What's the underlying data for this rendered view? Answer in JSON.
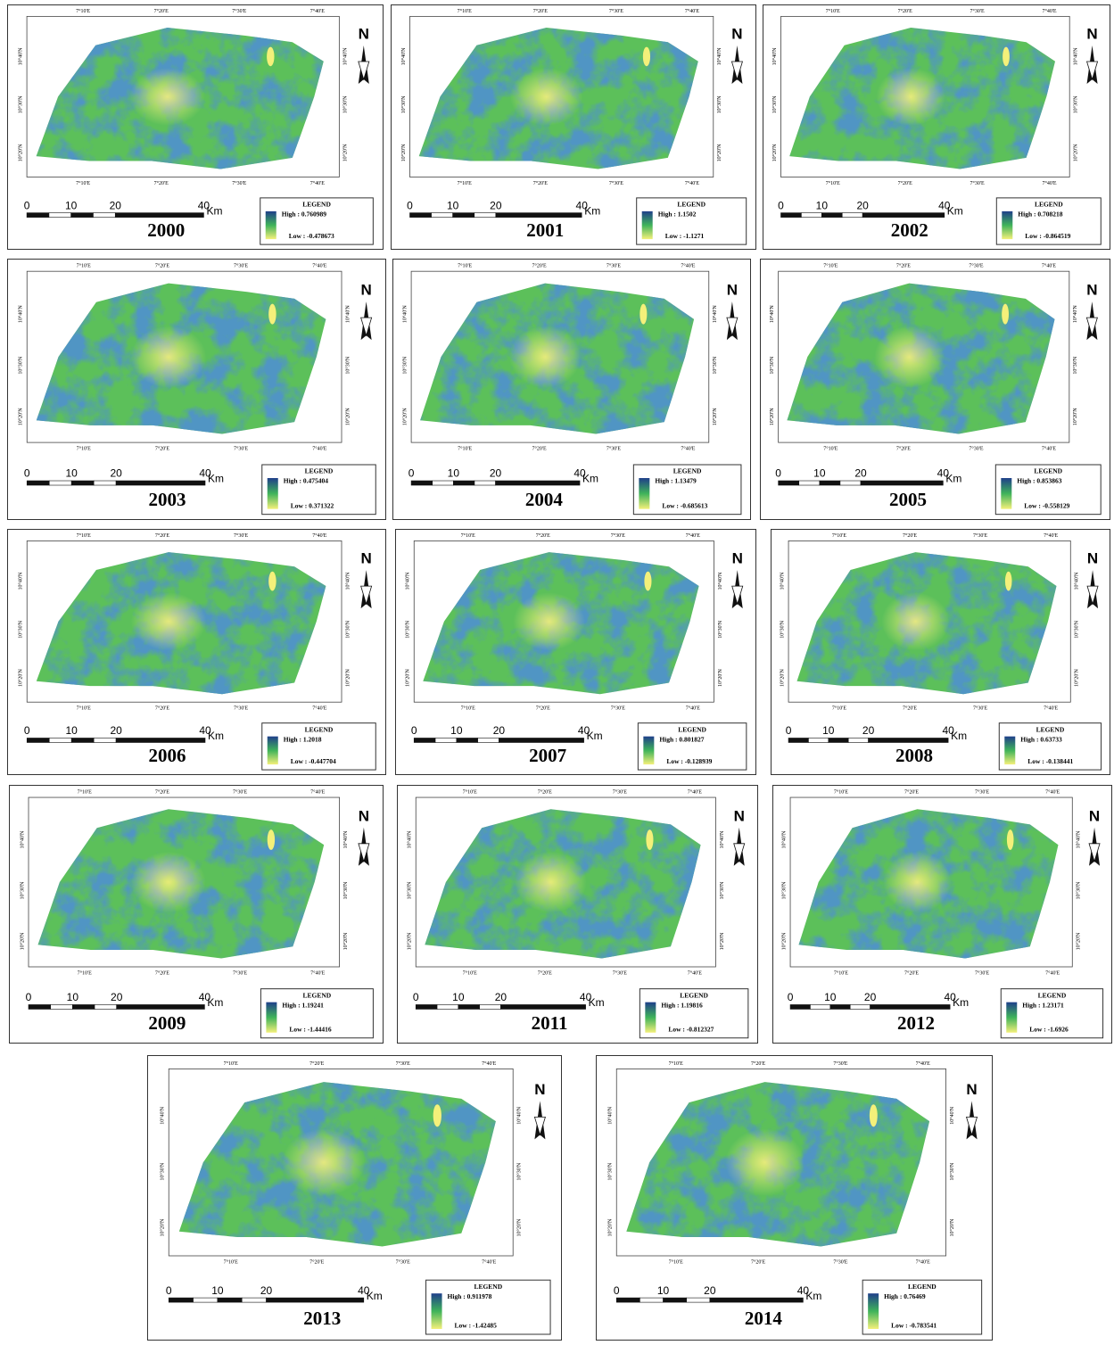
{
  "north": "N",
  "lon_labels": [
    "7°10'E",
    "7°20'E",
    "7°30'E",
    "7°40'E"
  ],
  "lat_labels": [
    "10°40'N",
    "10°30'N",
    "10°20'N"
  ],
  "scale": {
    "ticks": [
      "0",
      "10",
      "20",
      "40"
    ],
    "unit": "Km"
  },
  "legend_title": "LEGEND",
  "panels": [
    {
      "year": "2000",
      "high": "High : 0.760989",
      "low": "Low : -0.478673"
    },
    {
      "year": "2001",
      "high": "High : 1.1502",
      "low": "Low : -1.1271"
    },
    {
      "year": "2002",
      "high": "High : 0.708218",
      "low": "Low : -0.864519"
    },
    {
      "year": "2003",
      "high": "High : 0.475404",
      "low": "Low : 0.371322"
    },
    {
      "year": "2004",
      "high": "High : 1.13479",
      "low": "Low : -0.685613"
    },
    {
      "year": "2005",
      "high": "High : 0.853863",
      "low": "Low : -0.558129"
    },
    {
      "year": "2006",
      "high": "High : 1.2018",
      "low": "Low : -0.447704"
    },
    {
      "year": "2007",
      "high": "High : 0.801827",
      "low": "Low : -0.128939"
    },
    {
      "year": "2008",
      "high": "High : 0.63733",
      "low": "Low : -0.138441"
    },
    {
      "year": "2009",
      "high": "High : 1.19241",
      "low": "Low : -1.44416"
    },
    {
      "year": "2011",
      "high": "High : 1.19816",
      "low": "Low : -0.812327"
    },
    {
      "year": "2012",
      "high": "High : 1.23171",
      "low": "Low : -1.6926"
    },
    {
      "year": "2013",
      "high": "High : 0.911978",
      "low": "Low : -1.42485"
    },
    {
      "year": "2014",
      "high": "High : 0.76469",
      "low": "Low : -0.783541"
    }
  ]
}
